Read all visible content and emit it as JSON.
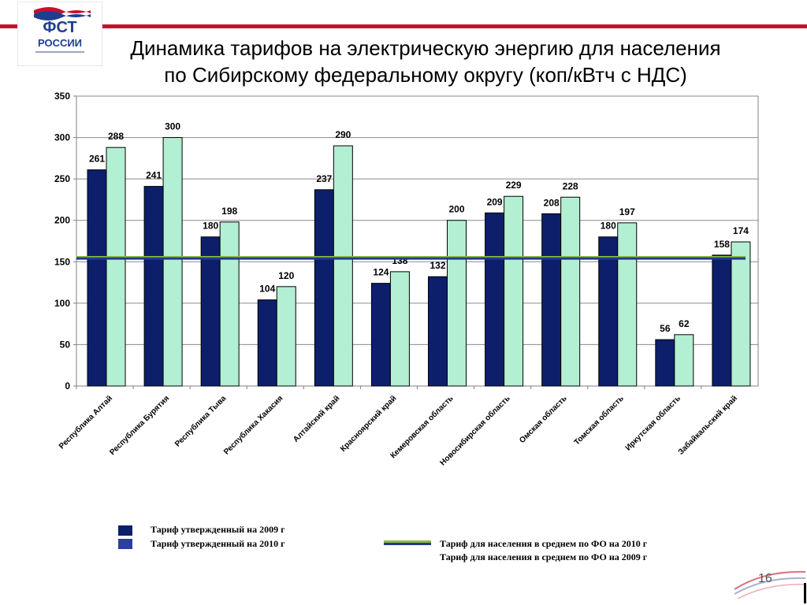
{
  "logo": {
    "text": "ФСТ",
    "subtext": "РОССИИ",
    "colors": [
      "#1d3f8f",
      "#c8102e"
    ]
  },
  "slide": {
    "title_line1": "Динамика тарифов на электрическую энергию для населения",
    "title_line2": "по Сибирскому федеральному округу (коп/кВтч с НДС)",
    "page_number": "16"
  },
  "chart_data": {
    "type": "bar",
    "categories": [
      "Республика Алтай",
      "Республика Бурятия",
      "Республика Тыва",
      "Республика Хакасия",
      "Алтайский край",
      "Красноярский край",
      "Кемеровская область",
      "Новосибирская область",
      "Омская область",
      "Томская область",
      "Иркутская область",
      "Забайкальский край"
    ],
    "series": [
      {
        "name": "Тариф утвержденный на 2009 г",
        "color": "#0d1f6b",
        "values": [
          261,
          241,
          180,
          104,
          237,
          124,
          132,
          209,
          208,
          180,
          56,
          158
        ]
      },
      {
        "name": "Тариф утвержденный на 2010 г",
        "color": "#b3efd2",
        "values": [
          288,
          300,
          198,
          120,
          290,
          138,
          200,
          229,
          228,
          197,
          62,
          174
        ]
      }
    ],
    "reference_lines": [
      {
        "name": "Тариф для населения в среднем по ФО на 2010 г",
        "value": 155.5,
        "color": "#8fbc3a"
      },
      {
        "name": "Тариф для населения в среднем по ФО на 2009 г",
        "value": 154,
        "color": "#1f3a93"
      }
    ],
    "ylim": [
      0,
      350
    ],
    "yticks": [
      0,
      50,
      100,
      150,
      200,
      250,
      300,
      350
    ],
    "grid": true,
    "legend_position": "bottom"
  }
}
